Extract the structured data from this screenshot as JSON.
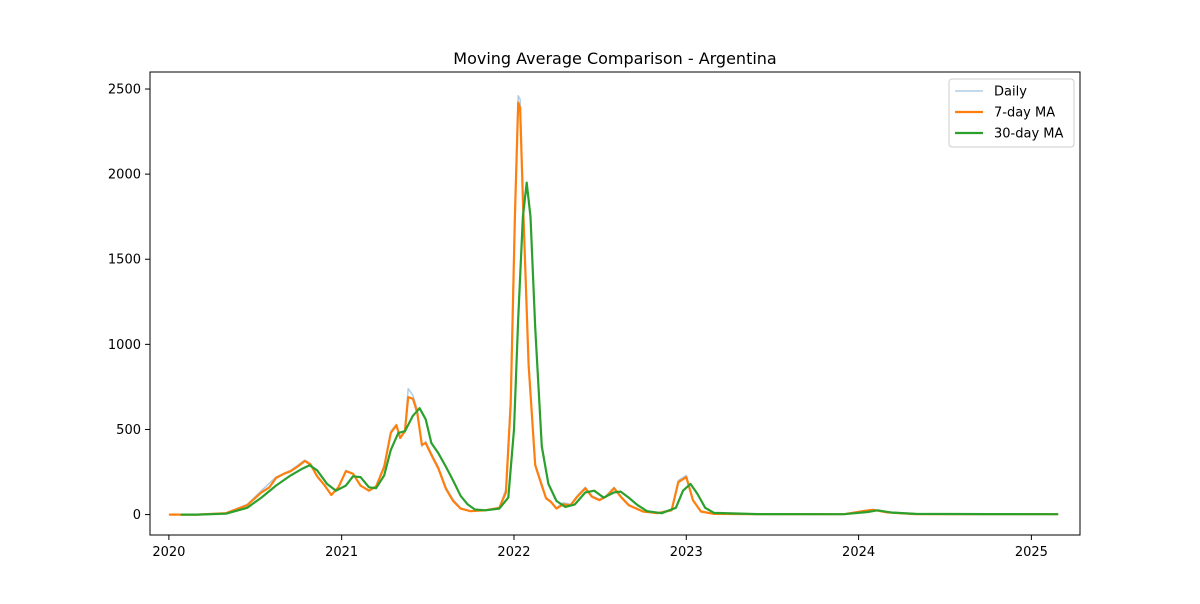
{
  "chart_data": {
    "type": "line",
    "title": "Moving Average Comparison - Argentina",
    "xlabel": "",
    "ylabel": "",
    "x_axis": {
      "type": "date",
      "range": [
        "2019-11-22",
        "2025-04-14"
      ],
      "ticks": [
        "2020-01-01",
        "2021-01-01",
        "2022-01-01",
        "2023-01-01",
        "2024-01-01",
        "2025-01-01"
      ],
      "tick_labels": [
        "2020",
        "2021",
        "2022",
        "2023",
        "2024",
        "2025"
      ]
    },
    "y_axis": {
      "range": [
        -120,
        2600
      ],
      "ticks": [
        0,
        500,
        1000,
        1500,
        2000,
        2500
      ],
      "tick_labels": [
        "0",
        "500",
        "1000",
        "1500",
        "2000",
        "2500"
      ]
    },
    "grid": false,
    "legend": {
      "placement": "top-right",
      "entries": [
        "Daily",
        "7-day MA",
        "30-day MA"
      ]
    },
    "series": [
      {
        "name": "Daily",
        "color": "#aecde5",
        "points": [
          [
            "2020-01-03",
            0
          ],
          [
            "2020-03-01",
            0
          ],
          [
            "2020-05-01",
            10
          ],
          [
            "2020-06-15",
            60
          ],
          [
            "2020-07-15",
            140
          ],
          [
            "2020-08-15",
            220
          ],
          [
            "2020-09-15",
            260
          ],
          [
            "2020-10-15",
            320
          ],
          [
            "2020-10-27",
            300
          ],
          [
            "2020-11-10",
            230
          ],
          [
            "2020-11-25",
            175
          ],
          [
            "2020-12-10",
            115
          ],
          [
            "2020-12-25",
            160
          ],
          [
            "2021-01-10",
            260
          ],
          [
            "2021-01-25",
            240
          ],
          [
            "2021-02-10",
            170
          ],
          [
            "2021-02-28",
            140
          ],
          [
            "2021-03-15",
            170
          ],
          [
            "2021-04-01",
            290
          ],
          [
            "2021-04-15",
            490
          ],
          [
            "2021-04-27",
            530
          ],
          [
            "2021-05-05",
            450
          ],
          [
            "2021-05-15",
            500
          ],
          [
            "2021-05-22",
            740
          ],
          [
            "2021-06-01",
            700
          ],
          [
            "2021-06-10",
            620
          ],
          [
            "2021-06-20",
            400
          ],
          [
            "2021-06-28",
            430
          ],
          [
            "2021-07-10",
            360
          ],
          [
            "2021-07-25",
            280
          ],
          [
            "2021-08-10",
            160
          ],
          [
            "2021-08-25",
            90
          ],
          [
            "2021-09-10",
            40
          ],
          [
            "2021-10-01",
            20
          ],
          [
            "2021-11-01",
            25
          ],
          [
            "2021-12-01",
            40
          ],
          [
            "2021-12-15",
            150
          ],
          [
            "2021-12-25",
            700
          ],
          [
            "2022-01-03",
            1800
          ],
          [
            "2022-01-10",
            2460
          ],
          [
            "2022-01-14",
            2440
          ],
          [
            "2022-01-20",
            1900
          ],
          [
            "2022-02-01",
            900
          ],
          [
            "2022-02-15",
            300
          ],
          [
            "2022-03-01",
            180
          ],
          [
            "2022-03-10",
            100
          ],
          [
            "2022-03-20",
            80
          ],
          [
            "2022-04-01",
            40
          ],
          [
            "2022-04-15",
            70
          ],
          [
            "2022-05-01",
            60
          ],
          [
            "2022-05-15",
            110
          ],
          [
            "2022-06-01",
            160
          ],
          [
            "2022-06-15",
            110
          ],
          [
            "2022-07-01",
            90
          ],
          [
            "2022-07-15",
            110
          ],
          [
            "2022-08-01",
            160
          ],
          [
            "2022-08-15",
            110
          ],
          [
            "2022-09-01",
            60
          ],
          [
            "2022-10-01",
            20
          ],
          [
            "2022-11-01",
            10
          ],
          [
            "2022-12-01",
            30
          ],
          [
            "2022-12-15",
            200
          ],
          [
            "2023-01-01",
            230
          ],
          [
            "2023-01-15",
            90
          ],
          [
            "2023-02-01",
            20
          ],
          [
            "2023-03-01",
            5
          ],
          [
            "2023-06-01",
            2
          ],
          [
            "2023-12-01",
            2
          ],
          [
            "2024-01-15",
            25
          ],
          [
            "2024-02-01",
            30
          ],
          [
            "2024-03-01",
            15
          ],
          [
            "2024-05-01",
            3
          ],
          [
            "2024-10-01",
            3
          ],
          [
            "2025-02-25",
            2
          ]
        ]
      },
      {
        "name": "7-day MA",
        "color": "#ff7f0e",
        "points": [
          [
            "2020-01-03",
            0
          ],
          [
            "2020-03-01",
            0
          ],
          [
            "2020-05-01",
            8
          ],
          [
            "2020-06-15",
            55
          ],
          [
            "2020-07-15",
            130
          ],
          [
            "2020-08-01",
            160
          ],
          [
            "2020-08-15",
            215
          ],
          [
            "2020-09-01",
            240
          ],
          [
            "2020-09-15",
            255
          ],
          [
            "2020-10-01",
            285
          ],
          [
            "2020-10-15",
            315
          ],
          [
            "2020-10-27",
            295
          ],
          [
            "2020-11-10",
            225
          ],
          [
            "2020-11-25",
            175
          ],
          [
            "2020-12-10",
            115
          ],
          [
            "2020-12-25",
            160
          ],
          [
            "2021-01-10",
            255
          ],
          [
            "2021-01-25",
            240
          ],
          [
            "2021-02-10",
            170
          ],
          [
            "2021-02-28",
            140
          ],
          [
            "2021-03-15",
            165
          ],
          [
            "2021-04-01",
            280
          ],
          [
            "2021-04-15",
            480
          ],
          [
            "2021-04-27",
            525
          ],
          [
            "2021-05-05",
            450
          ],
          [
            "2021-05-15",
            490
          ],
          [
            "2021-05-22",
            690
          ],
          [
            "2021-06-01",
            680
          ],
          [
            "2021-06-10",
            600
          ],
          [
            "2021-06-20",
            410
          ],
          [
            "2021-06-28",
            420
          ],
          [
            "2021-07-10",
            350
          ],
          [
            "2021-07-25",
            270
          ],
          [
            "2021-08-10",
            150
          ],
          [
            "2021-08-25",
            80
          ],
          [
            "2021-09-10",
            35
          ],
          [
            "2021-10-01",
            20
          ],
          [
            "2021-11-01",
            25
          ],
          [
            "2021-12-01",
            40
          ],
          [
            "2021-12-15",
            130
          ],
          [
            "2021-12-25",
            650
          ],
          [
            "2022-01-03",
            1750
          ],
          [
            "2022-01-10",
            2420
          ],
          [
            "2022-01-14",
            2390
          ],
          [
            "2022-01-20",
            1850
          ],
          [
            "2022-02-01",
            880
          ],
          [
            "2022-02-15",
            290
          ],
          [
            "2022-03-01",
            170
          ],
          [
            "2022-03-10",
            95
          ],
          [
            "2022-03-20",
            75
          ],
          [
            "2022-04-01",
            35
          ],
          [
            "2022-04-15",
            60
          ],
          [
            "2022-05-01",
            55
          ],
          [
            "2022-05-15",
            105
          ],
          [
            "2022-06-01",
            155
          ],
          [
            "2022-06-15",
            105
          ],
          [
            "2022-07-01",
            85
          ],
          [
            "2022-07-15",
            105
          ],
          [
            "2022-08-01",
            155
          ],
          [
            "2022-08-15",
            105
          ],
          [
            "2022-09-01",
            55
          ],
          [
            "2022-10-01",
            18
          ],
          [
            "2022-11-01",
            8
          ],
          [
            "2022-12-01",
            25
          ],
          [
            "2022-12-15",
            190
          ],
          [
            "2023-01-01",
            220
          ],
          [
            "2023-01-15",
            85
          ],
          [
            "2023-02-01",
            18
          ],
          [
            "2023-03-01",
            4
          ],
          [
            "2023-06-01",
            2
          ],
          [
            "2023-12-01",
            2
          ],
          [
            "2024-01-15",
            22
          ],
          [
            "2024-02-01",
            28
          ],
          [
            "2024-03-01",
            13
          ],
          [
            "2024-05-01",
            3
          ],
          [
            "2024-10-01",
            3
          ],
          [
            "2025-02-25",
            2
          ]
        ]
      },
      {
        "name": "30-day MA",
        "color": "#2ca02c",
        "points": [
          [
            "2020-01-28",
            0
          ],
          [
            "2020-03-01",
            0
          ],
          [
            "2020-05-01",
            5
          ],
          [
            "2020-06-15",
            40
          ],
          [
            "2020-07-15",
            100
          ],
          [
            "2020-08-15",
            170
          ],
          [
            "2020-09-15",
            230
          ],
          [
            "2020-10-10",
            270
          ],
          [
            "2020-10-25",
            290
          ],
          [
            "2020-11-10",
            260
          ],
          [
            "2020-12-01",
            180
          ],
          [
            "2020-12-20",
            140
          ],
          [
            "2021-01-10",
            170
          ],
          [
            "2021-01-25",
            225
          ],
          [
            "2021-02-10",
            220
          ],
          [
            "2021-02-28",
            160
          ],
          [
            "2021-03-15",
            155
          ],
          [
            "2021-04-01",
            230
          ],
          [
            "2021-04-15",
            380
          ],
          [
            "2021-05-01",
            480
          ],
          [
            "2021-05-15",
            490
          ],
          [
            "2021-06-01",
            580
          ],
          [
            "2021-06-15",
            625
          ],
          [
            "2021-06-28",
            560
          ],
          [
            "2021-07-10",
            420
          ],
          [
            "2021-07-25",
            360
          ],
          [
            "2021-08-10",
            280
          ],
          [
            "2021-08-25",
            200
          ],
          [
            "2021-09-10",
            110
          ],
          [
            "2021-09-25",
            60
          ],
          [
            "2021-10-10",
            30
          ],
          [
            "2021-11-01",
            25
          ],
          [
            "2021-12-01",
            35
          ],
          [
            "2021-12-20",
            100
          ],
          [
            "2022-01-01",
            500
          ],
          [
            "2022-01-10",
            1150
          ],
          [
            "2022-01-20",
            1750
          ],
          [
            "2022-01-28",
            1950
          ],
          [
            "2022-02-05",
            1750
          ],
          [
            "2022-02-15",
            1100
          ],
          [
            "2022-03-01",
            400
          ],
          [
            "2022-03-15",
            180
          ],
          [
            "2022-04-01",
            80
          ],
          [
            "2022-04-20",
            45
          ],
          [
            "2022-05-10",
            60
          ],
          [
            "2022-06-01",
            130
          ],
          [
            "2022-06-20",
            140
          ],
          [
            "2022-07-10",
            100
          ],
          [
            "2022-08-01",
            130
          ],
          [
            "2022-08-15",
            135
          ],
          [
            "2022-09-01",
            100
          ],
          [
            "2022-09-20",
            55
          ],
          [
            "2022-10-10",
            20
          ],
          [
            "2022-11-10",
            8
          ],
          [
            "2022-12-10",
            40
          ],
          [
            "2022-12-25",
            140
          ],
          [
            "2023-01-10",
            180
          ],
          [
            "2023-01-25",
            120
          ],
          [
            "2023-02-10",
            40
          ],
          [
            "2023-03-01",
            10
          ],
          [
            "2023-06-01",
            3
          ],
          [
            "2023-12-01",
            2
          ],
          [
            "2024-01-20",
            15
          ],
          [
            "2024-02-10",
            25
          ],
          [
            "2024-03-10",
            12
          ],
          [
            "2024-05-01",
            4
          ],
          [
            "2024-10-01",
            3
          ],
          [
            "2025-02-25",
            2
          ]
        ]
      }
    ]
  }
}
